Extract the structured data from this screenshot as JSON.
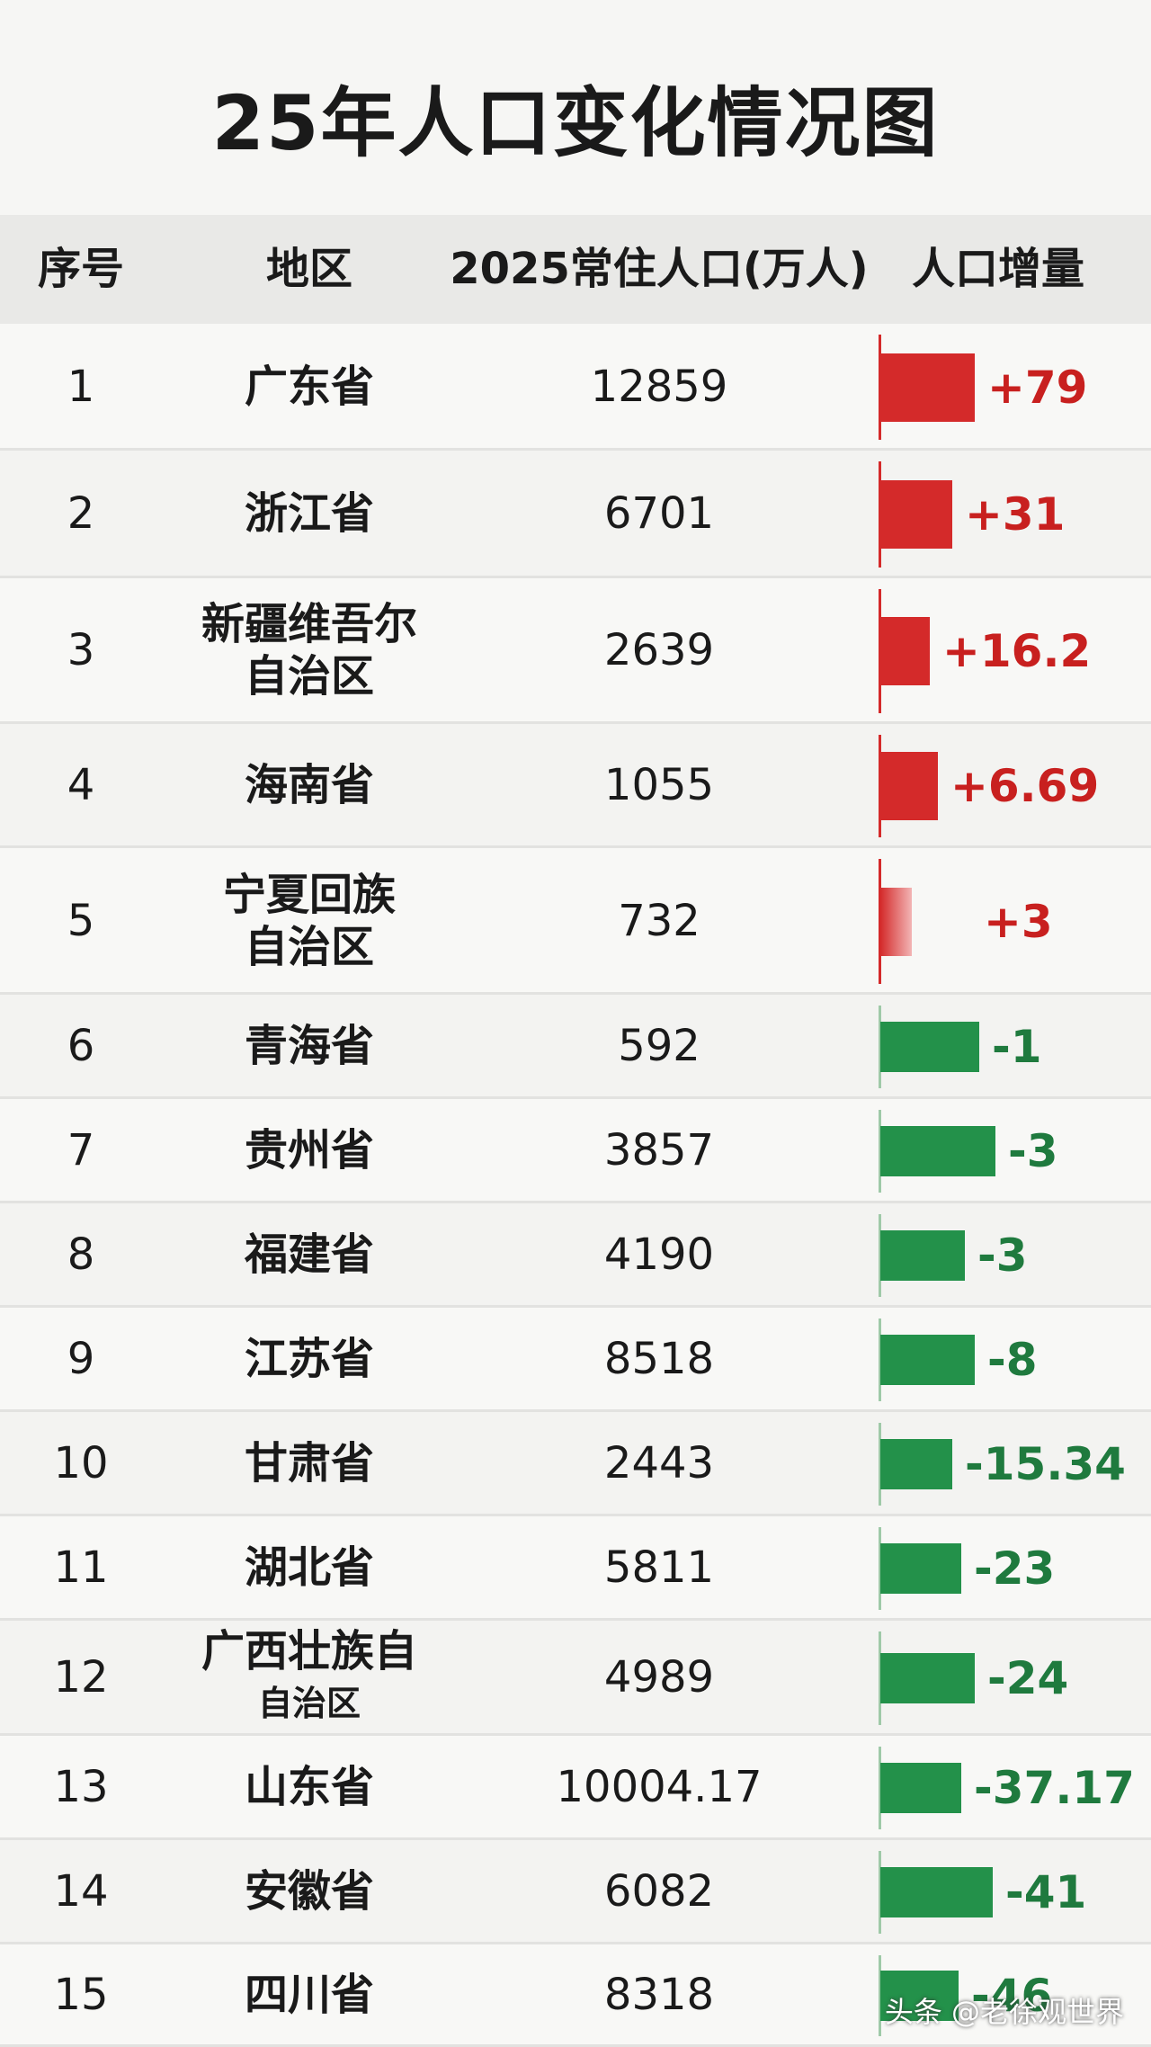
{
  "header": {
    "title": "25年人口变化情况图"
  },
  "table": {
    "columns": [
      "序号",
      "地区",
      "2025常住人口(万人)",
      "人口增量"
    ],
    "rows": [
      [
        "1",
        [
          "广东省"
        ],
        "12859",
        "+79"
      ],
      [
        "2",
        [
          "浙江省"
        ],
        "6701",
        "+31"
      ],
      [
        "3",
        [
          "新疆维吾尔",
          "自治区"
        ],
        "2639",
        "+16.2"
      ],
      [
        "4",
        [
          "海南省"
        ],
        "1055",
        "+6.69"
      ],
      [
        "5",
        [
          "宁夏回族",
          "自治区"
        ],
        "732",
        "+3"
      ],
      [
        "6",
        [
          "青海省"
        ],
        "592",
        "-1"
      ],
      [
        "7",
        [
          "贵州省"
        ],
        "3857",
        "-3"
      ],
      [
        "8",
        [
          "福建省"
        ],
        "4190",
        "-3"
      ],
      [
        "9",
        [
          "江苏省"
        ],
        "8518",
        "-8"
      ],
      [
        "10",
        [
          "甘肃省"
        ],
        "2443",
        "-15.34"
      ],
      [
        "11",
        [
          "湖北省"
        ],
        "5811",
        "-23"
      ],
      [
        "12",
        [
          "广西壮族自",
          "自治区"
        ],
        "4989",
        "-24"
      ],
      [
        "13",
        [
          "山东省"
        ],
        "10004.17",
        "-37.17"
      ],
      [
        "14",
        [
          "安徽省"
        ],
        "6082",
        "-41"
      ],
      [
        "15",
        [
          "四川省"
        ],
        "8318",
        "-46"
      ]
    ]
  },
  "watermark": "头条 @老徐观世界"
}
